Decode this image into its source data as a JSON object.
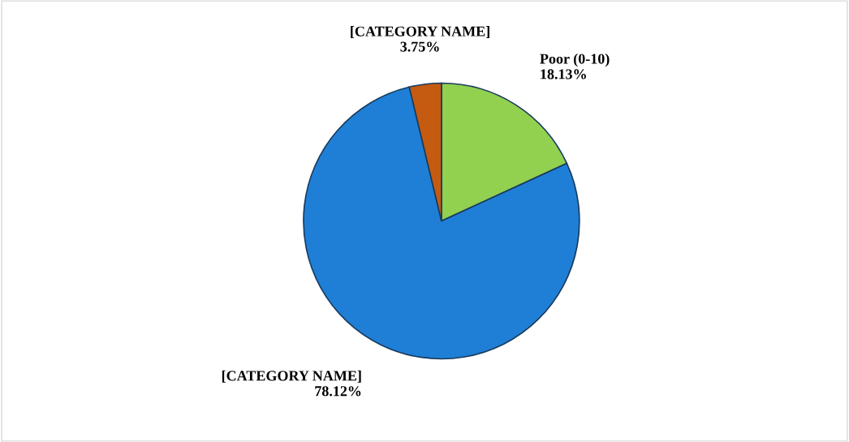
{
  "chart_data": {
    "type": "pie",
    "categories": [
      "Poor (0-10)",
      "[CATEGORY NAME]",
      "[CATEGORY NAME]"
    ],
    "values": [
      18.13,
      78.12,
      3.75
    ],
    "colors": [
      "#92d050",
      "#1f7fd6",
      "#c55a11"
    ],
    "value_labels": [
      "18.13%",
      "78.12%",
      "3.75%"
    ]
  }
}
